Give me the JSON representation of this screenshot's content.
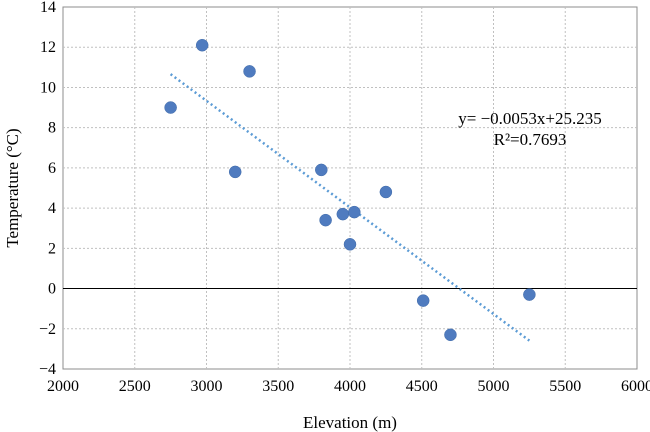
{
  "chart_data": {
    "type": "scatter",
    "title": "",
    "xlabel": "Elevation (m)",
    "ylabel": "Temperature (°C)",
    "xlim": [
      2000,
      6000
    ],
    "ylim": [
      -4,
      14
    ],
    "xticks": [
      2000,
      2500,
      3000,
      3500,
      4000,
      4500,
      5000,
      5500,
      6000
    ],
    "yticks": [
      -4,
      -2,
      0,
      2,
      4,
      6,
      8,
      10,
      12,
      14
    ],
    "ytick_labels": [
      "−4",
      "−2",
      "0",
      "2",
      "4",
      "6",
      "8",
      "10",
      "12",
      "14"
    ],
    "grid": true,
    "legend": "none",
    "series": [
      {
        "points": [
          {
            "x": 2750,
            "y": 9.0
          },
          {
            "x": 2970,
            "y": 12.1
          },
          {
            "x": 3200,
            "y": 5.8
          },
          {
            "x": 3300,
            "y": 10.8
          },
          {
            "x": 3800,
            "y": 5.9
          },
          {
            "x": 3830,
            "y": 3.4
          },
          {
            "x": 3950,
            "y": 3.7
          },
          {
            "x": 4000,
            "y": 2.2
          },
          {
            "x": 4030,
            "y": 3.8
          },
          {
            "x": 4250,
            "y": 4.8
          },
          {
            "x": 4510,
            "y": -0.6
          },
          {
            "x": 4700,
            "y": -2.3
          },
          {
            "x": 5250,
            "y": -0.3
          }
        ],
        "color": "#4f7bbf"
      }
    ],
    "trendline": {
      "type": "linear",
      "slope": -0.0053,
      "intercept": 25.235,
      "x_range": [
        2750,
        5250
      ],
      "color": "#5b9bd5",
      "equation_label": "y= −0.0053x+25.235",
      "r2_label": "R²=0.7693"
    }
  }
}
